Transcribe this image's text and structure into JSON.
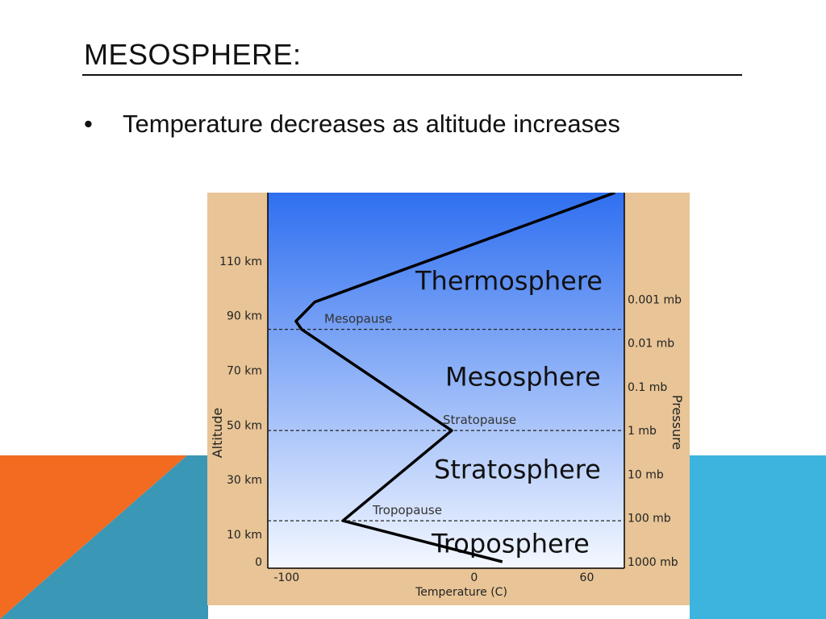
{
  "slide": {
    "title": "MESOSPHERE:",
    "bullet_marker": "•",
    "bullet_text": "Temperature decreases as altitude increases"
  },
  "colors": {
    "deco_orange": "#f36b21",
    "deco_blue_dark": "#3a97b5",
    "deco_blue_light": "#3cb4dd",
    "figure_frame": "#e8c496",
    "sky_top": "#2f6ff0",
    "sky_bottom": "#f4f8ff"
  },
  "figure": {
    "left_axis_label": "Altitude",
    "right_axis_label": "Pressure",
    "bottom_axis_label": "Temperature (C)",
    "altitude_ticks": [
      {
        "value": 110,
        "label": "110 km"
      },
      {
        "value": 90,
        "label": "90 km"
      },
      {
        "value": 70,
        "label": "70 km"
      },
      {
        "value": 50,
        "label": "50 km"
      },
      {
        "value": 30,
        "label": "30 km"
      },
      {
        "value": 10,
        "label": "10 km"
      },
      {
        "value": 0,
        "label": "0"
      }
    ],
    "pressure_ticks": [
      {
        "altitude": 96,
        "label": "0.001 mb"
      },
      {
        "altitude": 80,
        "label": "0.01 mb"
      },
      {
        "altitude": 64,
        "label": "0.1 mb"
      },
      {
        "altitude": 48,
        "label": "1 mb"
      },
      {
        "altitude": 32,
        "label": "10 mb"
      },
      {
        "altitude": 16,
        "label": "100 mb"
      },
      {
        "altitude": 0,
        "label": "1000 mb"
      }
    ],
    "temperature_ticks": [
      {
        "value": -100,
        "label": "-100"
      },
      {
        "value": 0,
        "label": "0"
      },
      {
        "value": 60,
        "label": "60"
      }
    ],
    "layers": [
      {
        "name": "Thermosphere",
        "altitude": 103
      },
      {
        "name": "Mesosphere",
        "altitude": 68
      },
      {
        "name": "Stratosphere",
        "altitude": 34
      },
      {
        "name": "Troposphere",
        "altitude": 7
      }
    ],
    "pauses": [
      {
        "name": "Mesopause",
        "altitude": 85
      },
      {
        "name": "Stratopause",
        "altitude": 48
      },
      {
        "name": "Tropopause",
        "altitude": 15
      }
    ],
    "profile": [
      {
        "temperature": 15,
        "altitude": 0
      },
      {
        "temperature": -70,
        "altitude": 15
      },
      {
        "temperature": -12,
        "altitude": 48
      },
      {
        "temperature": -92,
        "altitude": 85
      },
      {
        "temperature": -95,
        "altitude": 88
      },
      {
        "temperature": -85,
        "altitude": 95
      },
      {
        "temperature": 75,
        "altitude": 135
      }
    ],
    "temperature_range": [
      -110,
      80
    ],
    "altitude_range": [
      0,
      135
    ]
  }
}
